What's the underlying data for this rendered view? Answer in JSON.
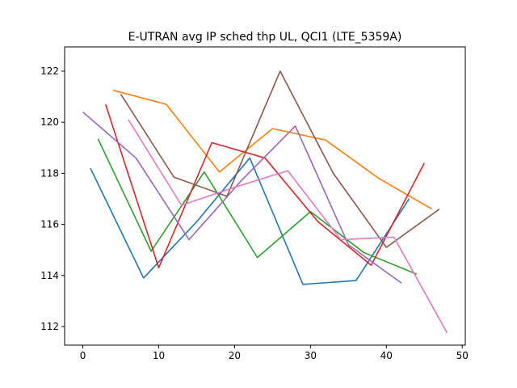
{
  "chart_data": {
    "type": "line",
    "title": "E-UTRAN avg IP sched thp UL, QCI1 (LTE_5359A)",
    "xlabel": "",
    "ylabel": "",
    "xlim": [
      -2.4,
      50.4
    ],
    "ylim": [
      111.27,
      122.95
    ],
    "xticks": [
      0,
      10,
      20,
      30,
      40,
      50
    ],
    "yticks": [
      112,
      114,
      116,
      118,
      120,
      122
    ],
    "grid": false,
    "legend": "none",
    "series": [
      {
        "color": "#1f77b4",
        "points": [
          [
            1,
            118.2
          ],
          [
            8,
            113.9
          ],
          [
            15,
            116.1
          ],
          [
            22,
            118.6
          ],
          [
            29,
            113.65
          ],
          [
            36,
            113.8
          ],
          [
            43,
            117.0
          ]
        ]
      },
      {
        "color": "#ff7f0e",
        "points": [
          [
            4,
            121.25
          ],
          [
            11,
            120.7
          ],
          [
            18,
            118.05
          ],
          [
            25,
            119.75
          ],
          [
            32,
            119.3
          ],
          [
            39,
            117.8
          ],
          [
            46,
            116.6
          ]
        ]
      },
      {
        "color": "#2ca02c",
        "points": [
          [
            2,
            119.35
          ],
          [
            9,
            114.95
          ],
          [
            16,
            118.05
          ],
          [
            23,
            114.7
          ],
          [
            30,
            116.5
          ],
          [
            37,
            114.9
          ],
          [
            44,
            114.05
          ]
        ]
      },
      {
        "color": "#d62728",
        "points": [
          [
            3,
            120.7
          ],
          [
            10,
            114.3
          ],
          [
            17,
            119.2
          ],
          [
            24,
            118.6
          ],
          [
            31,
            116.1
          ],
          [
            38,
            114.4
          ],
          [
            45,
            118.4
          ]
        ]
      },
      {
        "color": "#9467bd",
        "points": [
          [
            0,
            120.4
          ],
          [
            7,
            118.6
          ],
          [
            14,
            115.4
          ],
          [
            21,
            117.75
          ],
          [
            28,
            119.85
          ],
          [
            35,
            115.2
          ],
          [
            42,
            113.7
          ]
        ]
      },
      {
        "color": "#8c564b",
        "points": [
          [
            5,
            121.1
          ],
          [
            12,
            117.85
          ],
          [
            19,
            117.1
          ],
          [
            26,
            122.0
          ],
          [
            33,
            118.0
          ],
          [
            40,
            115.1
          ],
          [
            47,
            116.6
          ]
        ]
      },
      {
        "color": "#e377c2",
        "points": [
          [
            6,
            120.1
          ],
          [
            13,
            116.75
          ],
          [
            20,
            117.45
          ],
          [
            27,
            118.1
          ],
          [
            34,
            115.4
          ],
          [
            41,
            115.5
          ],
          [
            48,
            111.75
          ]
        ]
      }
    ]
  }
}
